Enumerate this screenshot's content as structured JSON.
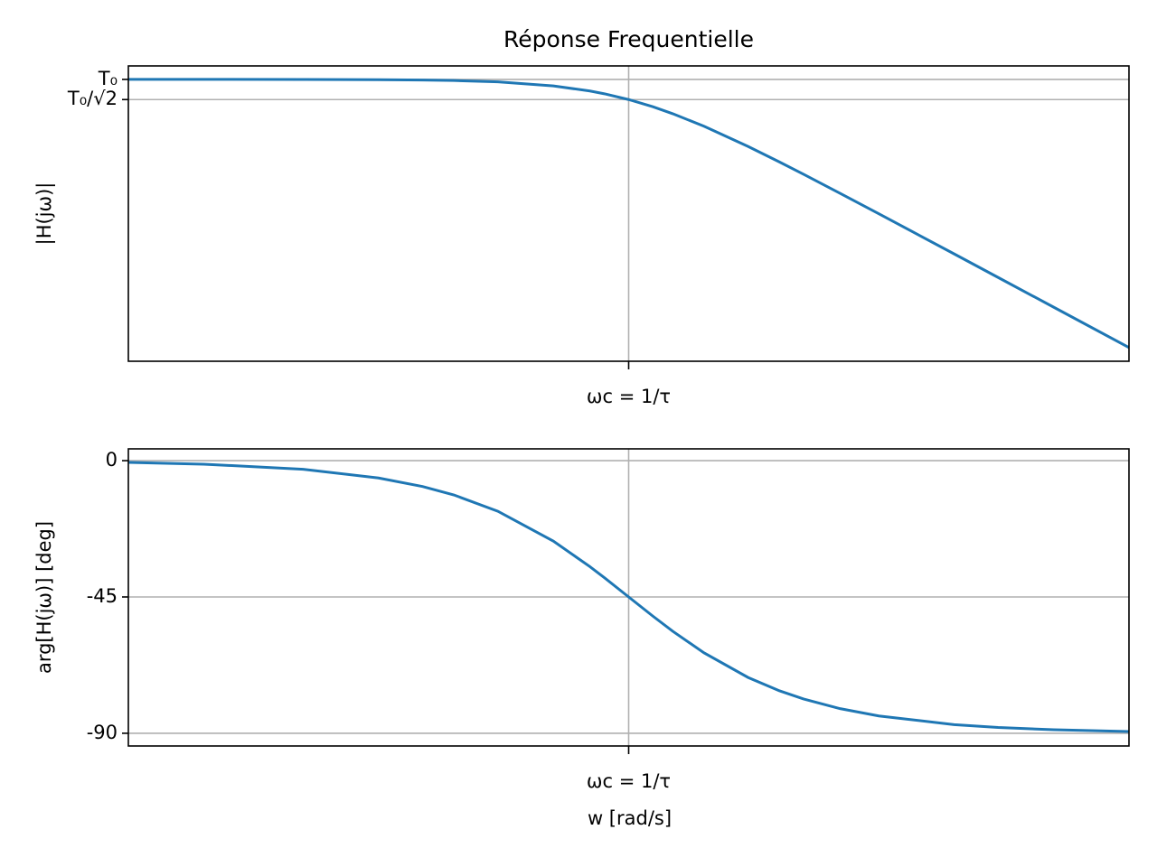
{
  "chart_data": [
    {
      "type": "line",
      "title": "Réponse Frequentielle",
      "ylabel": "|H(jω)|",
      "xlog": true,
      "ylog": true,
      "grid": true,
      "color": "#1f77b4",
      "x": [
        0.01,
        0.02,
        0.05,
        0.1,
        0.15,
        0.2,
        0.3,
        0.5,
        0.7,
        0.8,
        1,
        1.25,
        1.5,
        2,
        3,
        4,
        5,
        7,
        10,
        20,
        30,
        50,
        100
      ],
      "values": [
        0.99995,
        0.9998,
        0.9988,
        0.995,
        0.9889,
        0.9806,
        0.9578,
        0.8944,
        0.8192,
        0.7809,
        0.7071,
        0.6247,
        0.5547,
        0.4472,
        0.3162,
        0.2425,
        0.1961,
        0.1414,
        0.0995,
        0.04994,
        0.0333,
        0.019996,
        0.0099995
      ],
      "xlim": [
        0.01,
        100
      ],
      "ylim": [
        0.0079,
        1.26
      ],
      "xticks": [
        {
          "value": 1,
          "label": "ωc = 1/τ"
        }
      ],
      "yticks": [
        {
          "value": 1,
          "label": "T₀"
        },
        {
          "value": 0.7071,
          "label": "T₀/√2"
        }
      ]
    },
    {
      "type": "line",
      "ylabel": "arg[H(jω)] [deg]",
      "xlabel": "w [rad/s]",
      "xlog": true,
      "ylog": false,
      "grid": true,
      "color": "#1f77b4",
      "x": [
        0.01,
        0.02,
        0.05,
        0.1,
        0.15,
        0.2,
        0.3,
        0.5,
        0.7,
        0.8,
        1,
        1.25,
        1.5,
        2,
        3,
        4,
        5,
        7,
        10,
        20,
        30,
        50,
        100
      ],
      "values": [
        -0.57,
        -1.15,
        -2.86,
        -5.71,
        -8.53,
        -11.31,
        -16.7,
        -26.57,
        -34.99,
        -38.66,
        -45,
        -51.34,
        -56.31,
        -63.43,
        -71.57,
        -75.96,
        -78.69,
        -81.87,
        -84.29,
        -87.14,
        -88.09,
        -88.85,
        -89.43
      ],
      "xlim": [
        0.01,
        100
      ],
      "ylim": [
        -94.2,
        3.9
      ],
      "xticks": [
        {
          "value": 1,
          "label": "ωc = 1/τ"
        }
      ],
      "yticks": [
        0,
        -45,
        -90
      ]
    }
  ]
}
